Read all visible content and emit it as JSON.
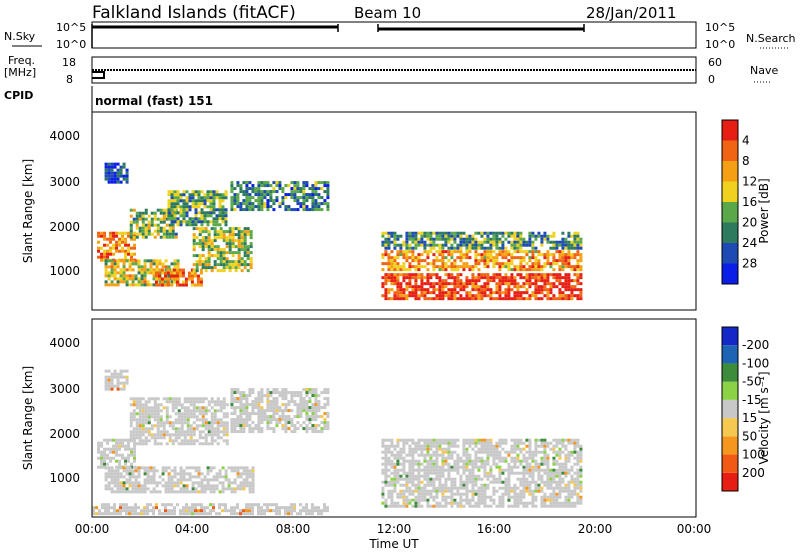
{
  "header": {
    "station": "Falkland Islands (fitACF)",
    "beam": "Beam 10",
    "date": "28/Jan/2011"
  },
  "params": {
    "nsky_label": "N.Sky",
    "nsky_ticks": [
      "10^5",
      "10^0"
    ],
    "nsearch_label": "N.Search",
    "freq_label": "Freq.",
    "freq_unit": "[MHz]",
    "freq_ticks": [
      "18",
      "8"
    ],
    "nave_label": "Nave",
    "nave_ticks": [
      "60",
      "0"
    ],
    "cpid_label": "CPID",
    "cpid_value": "normal (fast) 151"
  },
  "colors": {
    "power": [
      "#0a1ee6",
      "#1e4ab4",
      "#2e7a5e",
      "#5aa84a",
      "#f0d21e",
      "#f5a014",
      "#f06414",
      "#e61e14"
    ],
    "velocity": [
      "#e61e14",
      "#f05a14",
      "#f5961e",
      "#f5c850",
      "#c8c8c8",
      "#8cd246",
      "#3c8c3c",
      "#1e64b4",
      "#1428c8"
    ]
  },
  "chart_data": [
    {
      "type": "heatmap",
      "name": "power",
      "xlabel": "",
      "ylabel": "Slant Range [km]",
      "ylim": [
        200,
        4500
      ],
      "y_ticks": [
        "1000",
        "2000",
        "3000",
        "4000"
      ],
      "colorbar_label": "Power [dB]",
      "colorbar_ticks": [
        "4",
        "8",
        "12",
        "16",
        "20",
        "24",
        "28"
      ],
      "regions": [
        {
          "t0": 0.2,
          "t1": 1.8,
          "r0": 1200,
          "r1": 1900,
          "level": 0.75
        },
        {
          "t0": 1.5,
          "t1": 3.5,
          "r0": 1700,
          "r1": 2400,
          "level": 0.45
        },
        {
          "t0": 3.0,
          "t1": 5.5,
          "r0": 2000,
          "r1": 2800,
          "level": 0.4
        },
        {
          "t0": 5.5,
          "t1": 9.5,
          "r0": 2300,
          "r1": 3000,
          "level": 0.3
        },
        {
          "t0": 0.5,
          "t1": 3.5,
          "r0": 700,
          "r1": 1300,
          "level": 0.55
        },
        {
          "t0": 2.5,
          "t1": 4.5,
          "r0": 700,
          "r1": 1100,
          "level": 0.8
        },
        {
          "t0": 4.0,
          "t1": 6.5,
          "r0": 1000,
          "r1": 2000,
          "level": 0.5
        },
        {
          "t0": 0.5,
          "t1": 1.5,
          "r0": 2900,
          "r1": 3400,
          "level": 0.15
        },
        {
          "t0": 11.5,
          "t1": 19.5,
          "r0": 400,
          "r1": 1000,
          "level": 0.9
        },
        {
          "t0": 11.5,
          "t1": 19.5,
          "r0": 1000,
          "r1": 1500,
          "level": 0.7
        },
        {
          "t0": 11.5,
          "t1": 19.5,
          "r0": 1500,
          "r1": 1900,
          "level": 0.35
        }
      ]
    },
    {
      "type": "heatmap",
      "name": "velocity",
      "xlabel": "Time UT",
      "ylabel": "Slant Range [km]",
      "ylim": [
        200,
        4500
      ],
      "y_ticks": [
        "1000",
        "2000",
        "3000",
        "4000"
      ],
      "x_ticks": [
        "00:00",
        "04:00",
        "08:00",
        "12:00",
        "16:00",
        "20:00",
        "00:00"
      ],
      "colorbar_label": "Velocity [m s⁻¹]",
      "colorbar_ticks": [
        "200",
        "100",
        "50",
        "15",
        "-15",
        "-50",
        "-100",
        "-200"
      ],
      "regions": [
        {
          "t0": 0.2,
          "t1": 1.8,
          "r0": 1200,
          "r1": 1900,
          "level": 0.5
        },
        {
          "t0": 1.5,
          "t1": 5.5,
          "r0": 1700,
          "r1": 2800,
          "level": 0.5
        },
        {
          "t0": 5.5,
          "t1": 9.5,
          "r0": 2000,
          "r1": 3000,
          "level": 0.5
        },
        {
          "t0": 0.5,
          "t1": 6.5,
          "r0": 700,
          "r1": 1300,
          "level": 0.5
        },
        {
          "t0": 0.5,
          "t1": 1.5,
          "r0": 2900,
          "r1": 3400,
          "level": 0.3
        },
        {
          "t0": 11.5,
          "t1": 19.5,
          "r0": 400,
          "r1": 1900,
          "level": 0.5
        },
        {
          "t0": 0.0,
          "t1": 9.5,
          "r0": 200,
          "r1": 500,
          "level": 0.35
        }
      ]
    }
  ]
}
